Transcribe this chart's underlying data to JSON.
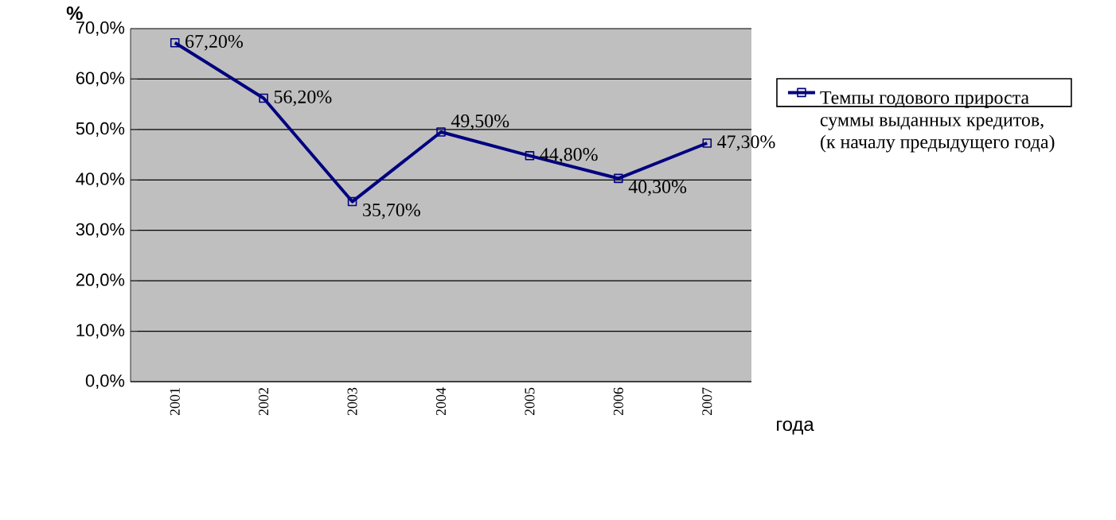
{
  "chart_data": {
    "type": "line",
    "ylabel": "%",
    "xlabel": "года",
    "categories": [
      "2001",
      "2002",
      "2003",
      "2004",
      "2005",
      "2006",
      "2007"
    ],
    "series": [
      {
        "name": "Темпы годового прироста суммы выданных кредитов, (к началу предыдущего года)",
        "color": "#000080",
        "values": [
          67.2,
          56.2,
          35.7,
          49.5,
          44.8,
          40.3,
          47.3
        ],
        "value_labels": [
          "67,20%",
          "56,20%",
          "35,70%",
          "49,50%",
          "44,80%",
          "40,30%",
          "47,30%"
        ]
      }
    ],
    "ylim": [
      0,
      70
    ],
    "yticks": [
      {
        "value": 0,
        "label": "0,0%"
      },
      {
        "value": 10,
        "label": "10,0%"
      },
      {
        "value": 20,
        "label": "20,0%"
      },
      {
        "value": 30,
        "label": "30,0%"
      },
      {
        "value": 40,
        "label": "40,0%"
      },
      {
        "value": 50,
        "label": "50,0%"
      },
      {
        "value": 60,
        "label": "60,0%"
      },
      {
        "value": 70,
        "label": "70,0%"
      }
    ],
    "grid": "y",
    "legend": "right",
    "marker": "square",
    "line_style": "solid"
  }
}
